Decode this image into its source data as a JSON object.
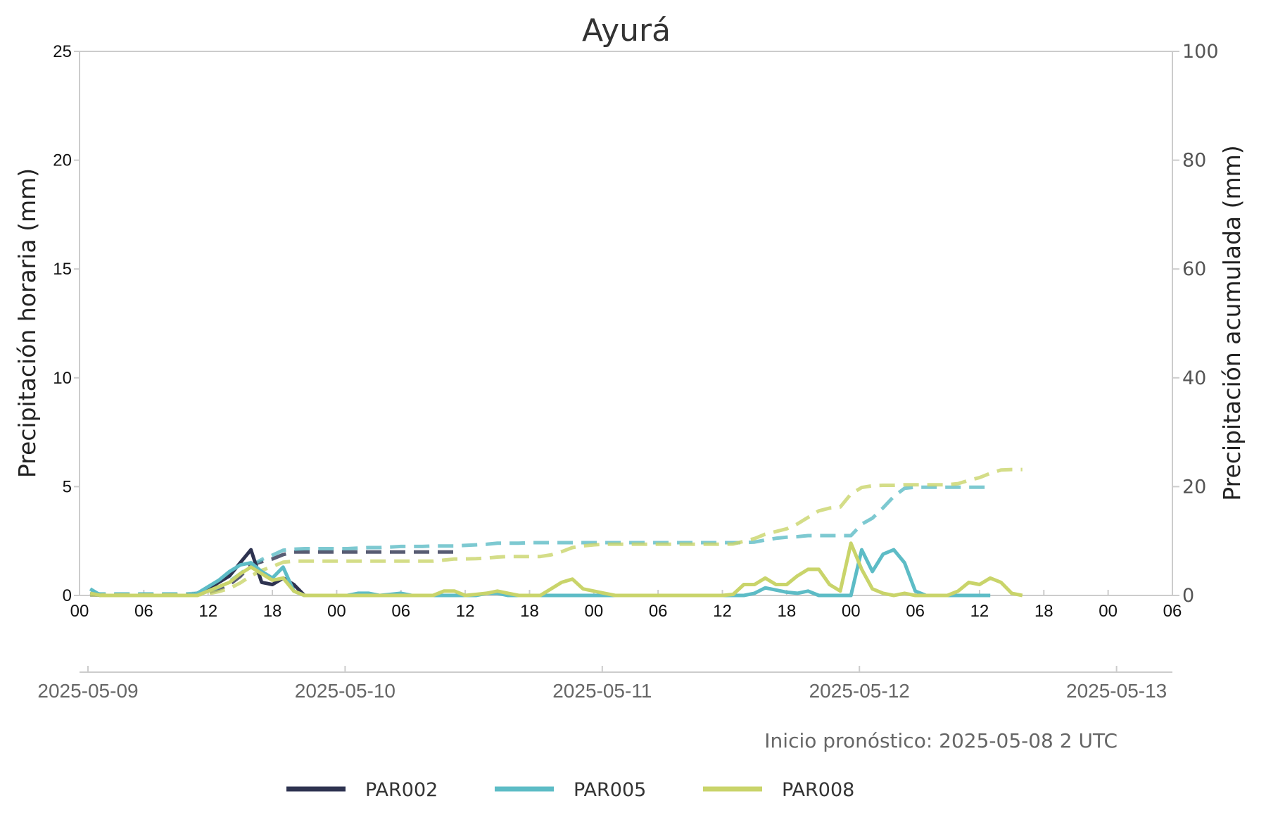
{
  "chart_data": {
    "type": "line",
    "title": "Ayurá",
    "ylabel_left": "Precipitación horaria (mm)",
    "ylabel_right": "Precipitación acumulada (mm)",
    "ylim_left": [
      0,
      25
    ],
    "ylim_right": [
      0,
      100
    ],
    "left_ticks": [
      "0",
      "5",
      "10",
      "15",
      "20",
      "25"
    ],
    "right_ticks": [
      "0",
      "20",
      "40",
      "60",
      "80",
      "100"
    ],
    "xlim_hours": [
      0,
      102
    ],
    "hour_ticks": [
      "00",
      "06",
      "12",
      "18",
      "00",
      "06",
      "12",
      "18",
      "00",
      "06",
      "12",
      "18",
      "00",
      "06",
      "12",
      "18",
      "00",
      "06"
    ],
    "date_ticks": [
      "2025-05-09",
      "2025-05-10",
      "2025-05-11",
      "2025-05-12",
      "2025-05-13"
    ],
    "note": "Inicio pronóstico: 2025-05-08 2 UTC",
    "grid": false,
    "legend_position": "bottom",
    "colors": {
      "PAR002": "#2e3350",
      "PAR005": "#5dbcc6",
      "PAR008": "#c9d46a",
      "axes": "#cccccc"
    },
    "series": [
      {
        "name": "PAR002",
        "hourly_x": [
          1,
          2,
          3,
          4,
          5,
          6,
          7,
          8,
          9,
          10,
          11,
          12,
          13,
          14,
          15,
          16,
          17,
          18,
          19,
          20,
          21,
          22,
          23,
          24,
          25,
          26,
          27,
          28,
          29,
          30,
          31,
          32,
          33,
          34,
          35
        ],
        "hourly_y": [
          0.1,
          0,
          0,
          0,
          0,
          0,
          0,
          0,
          0,
          0,
          0.1,
          0.3,
          0.6,
          0.9,
          1.5,
          2.1,
          0.6,
          0.5,
          0.8,
          0.5,
          0,
          0,
          0,
          0,
          0,
          0,
          0,
          0,
          0,
          0,
          0,
          0,
          0,
          0,
          0
        ],
        "accum_x": [
          1,
          2,
          3,
          4,
          5,
          6,
          7,
          8,
          9,
          10,
          11,
          12,
          13,
          14,
          15,
          16,
          17,
          18,
          19,
          20,
          21,
          22,
          23,
          24,
          25,
          26,
          27,
          28,
          29,
          30,
          31,
          32,
          33,
          34,
          35
        ],
        "accum_y": [
          0.1,
          0.1,
          0.1,
          0.1,
          0.1,
          0.1,
          0.1,
          0.1,
          0.1,
          0.1,
          0.2,
          0.5,
          1.1,
          2.0,
          3.5,
          5.6,
          6.2,
          6.7,
          7.5,
          8.0,
          8.0,
          8.0,
          8.0,
          8.0,
          8.0,
          8.0,
          8.0,
          8.0,
          8.0,
          8.0,
          8.0,
          8.0,
          8.0,
          8.0,
          8.0
        ]
      },
      {
        "name": "PAR005",
        "hourly_x": [
          1,
          2,
          3,
          4,
          5,
          6,
          7,
          8,
          9,
          10,
          11,
          12,
          13,
          14,
          15,
          16,
          17,
          18,
          19,
          20,
          21,
          22,
          23,
          24,
          25,
          26,
          27,
          28,
          29,
          30,
          31,
          32,
          33,
          34,
          35,
          36,
          37,
          38,
          39,
          40,
          41,
          42,
          43,
          44,
          45,
          46,
          47,
          48,
          49,
          50,
          51,
          52,
          53,
          54,
          55,
          56,
          57,
          58,
          59,
          60,
          61,
          62,
          63,
          64,
          65,
          66,
          67,
          68,
          69,
          70,
          71,
          72,
          73,
          74,
          75,
          76,
          77,
          78,
          79,
          80,
          81,
          82,
          83,
          84,
          85
        ],
        "hourly_y": [
          0.3,
          0,
          0,
          0,
          0,
          0,
          0,
          0,
          0,
          0,
          0.1,
          0.4,
          0.7,
          1.1,
          1.4,
          1.5,
          1.1,
          0.8,
          1.3,
          0.2,
          0,
          0,
          0,
          0,
          0,
          0.1,
          0.1,
          0,
          0.05,
          0.1,
          0,
          0,
          0,
          0,
          0,
          0,
          0,
          0.1,
          0.1,
          0,
          0,
          0,
          0,
          0,
          0,
          0,
          0,
          0,
          0,
          0,
          0,
          0,
          0,
          0,
          0,
          0,
          0,
          0,
          0,
          0,
          0,
          0,
          0.1,
          0.35,
          0.25,
          0.15,
          0.1,
          0.2,
          0,
          0,
          0,
          0,
          2.1,
          1.1,
          1.9,
          2.1,
          1.5,
          0.2,
          0,
          0,
          0,
          0,
          0,
          0,
          0
        ],
        "accum_x": [
          1,
          2,
          3,
          4,
          5,
          6,
          7,
          8,
          9,
          10,
          11,
          12,
          13,
          14,
          15,
          16,
          17,
          18,
          19,
          20,
          21,
          22,
          23,
          24,
          25,
          26,
          27,
          28,
          29,
          30,
          31,
          32,
          33,
          34,
          35,
          36,
          37,
          38,
          39,
          40,
          41,
          42,
          43,
          44,
          45,
          46,
          47,
          48,
          49,
          50,
          51,
          52,
          53,
          54,
          55,
          56,
          57,
          58,
          59,
          60,
          61,
          62,
          63,
          64,
          65,
          66,
          67,
          68,
          69,
          70,
          71,
          72,
          73,
          74,
          75,
          76,
          77,
          78,
          79,
          80,
          81,
          82,
          83,
          84,
          85
        ],
        "accum_y": [
          0.3,
          0.3,
          0.3,
          0.3,
          0.3,
          0.3,
          0.3,
          0.3,
          0.3,
          0.3,
          0.4,
          0.8,
          1.5,
          2.6,
          4.0,
          5.5,
          6.6,
          7.4,
          8.3,
          8.5,
          8.6,
          8.6,
          8.6,
          8.6,
          8.6,
          8.7,
          8.8,
          8.8,
          8.9,
          9.0,
          9.0,
          9.0,
          9.1,
          9.1,
          9.1,
          9.2,
          9.3,
          9.4,
          9.6,
          9.6,
          9.6,
          9.7,
          9.7,
          9.7,
          9.7,
          9.7,
          9.7,
          9.7,
          9.7,
          9.7,
          9.7,
          9.7,
          9.7,
          9.7,
          9.7,
          9.7,
          9.7,
          9.7,
          9.7,
          9.7,
          9.7,
          9.7,
          9.8,
          10.2,
          10.5,
          10.7,
          10.8,
          11.0,
          11.0,
          11.0,
          11.0,
          11.0,
          13.1,
          14.2,
          16.1,
          18.2,
          19.7,
          19.9,
          19.9,
          19.9,
          19.9,
          19.9,
          19.9,
          19.9,
          19.9
        ]
      },
      {
        "name": "PAR008",
        "hourly_x": [
          1,
          2,
          3,
          4,
          5,
          6,
          7,
          8,
          9,
          10,
          11,
          12,
          13,
          14,
          15,
          16,
          17,
          18,
          19,
          20,
          21,
          22,
          23,
          24,
          25,
          26,
          27,
          28,
          29,
          30,
          31,
          32,
          33,
          34,
          35,
          36,
          37,
          38,
          39,
          40,
          41,
          42,
          43,
          44,
          45,
          46,
          47,
          48,
          49,
          50,
          51,
          52,
          53,
          54,
          55,
          56,
          57,
          58,
          59,
          60,
          61,
          62,
          63,
          64,
          65,
          66,
          67,
          68,
          69,
          70,
          71,
          72,
          73,
          74,
          75,
          76,
          77,
          78,
          79,
          80,
          81,
          82,
          83,
          84,
          85,
          86,
          87,
          88
        ],
        "hourly_y": [
          0.1,
          0,
          0,
          0,
          0,
          0,
          0,
          0,
          0,
          0,
          0,
          0.2,
          0.4,
          0.6,
          1.0,
          1.3,
          1.0,
          0.7,
          0.8,
          0.2,
          0,
          0,
          0,
          0,
          0,
          0,
          0,
          0,
          0,
          0,
          0,
          0,
          0,
          0.2,
          0.2,
          0,
          0.05,
          0.1,
          0.2,
          0.1,
          0,
          0,
          0,
          0.3,
          0.6,
          0.75,
          0.3,
          0.2,
          0.1,
          0,
          0,
          0,
          0,
          0,
          0,
          0,
          0,
          0,
          0,
          0,
          0.05,
          0.5,
          0.5,
          0.8,
          0.5,
          0.5,
          0.9,
          1.2,
          1.2,
          0.5,
          0.2,
          2.4,
          1.2,
          0.3,
          0.1,
          0,
          0.1,
          0,
          0,
          0,
          0,
          0.2,
          0.6,
          0.5,
          0.8,
          0.6,
          0.1,
          0
        ],
        "accum_x": [
          1,
          2,
          3,
          4,
          5,
          6,
          7,
          8,
          9,
          10,
          11,
          12,
          13,
          14,
          15,
          16,
          17,
          18,
          19,
          20,
          21,
          22,
          23,
          24,
          25,
          26,
          27,
          28,
          29,
          30,
          31,
          32,
          33,
          34,
          35,
          36,
          37,
          38,
          39,
          40,
          41,
          42,
          43,
          44,
          45,
          46,
          47,
          48,
          49,
          50,
          51,
          52,
          53,
          54,
          55,
          56,
          57,
          58,
          59,
          60,
          61,
          62,
          63,
          64,
          65,
          66,
          67,
          68,
          69,
          70,
          71,
          72,
          73,
          74,
          75,
          76,
          77,
          78,
          79,
          80,
          81,
          82,
          83,
          84,
          85,
          86,
          87,
          88
        ],
        "accum_y": [
          0.1,
          0.1,
          0.1,
          0.1,
          0.1,
          0.1,
          0.1,
          0.1,
          0.1,
          0.1,
          0.1,
          0.3,
          0.7,
          1.3,
          2.3,
          3.6,
          4.6,
          5.3,
          6.1,
          6.3,
          6.3,
          6.3,
          6.3,
          6.3,
          6.3,
          6.3,
          6.3,
          6.3,
          6.3,
          6.3,
          6.3,
          6.3,
          6.3,
          6.5,
          6.7,
          6.7,
          6.75,
          6.85,
          7.05,
          7.15,
          7.15,
          7.15,
          7.15,
          7.45,
          8.05,
          8.8,
          9.1,
          9.3,
          9.4,
          9.4,
          9.4,
          9.4,
          9.4,
          9.4,
          9.4,
          9.4,
          9.4,
          9.4,
          9.4,
          9.4,
          9.45,
          9.95,
          10.45,
          11.25,
          11.75,
          12.25,
          13.15,
          14.35,
          15.55,
          16.05,
          16.25,
          18.65,
          19.85,
          20.15,
          20.25,
          20.25,
          20.35,
          20.35,
          20.35,
          20.35,
          20.35,
          20.55,
          21.15,
          21.65,
          22.45,
          23.05,
          23.15,
          23.15
        ]
      }
    ]
  }
}
